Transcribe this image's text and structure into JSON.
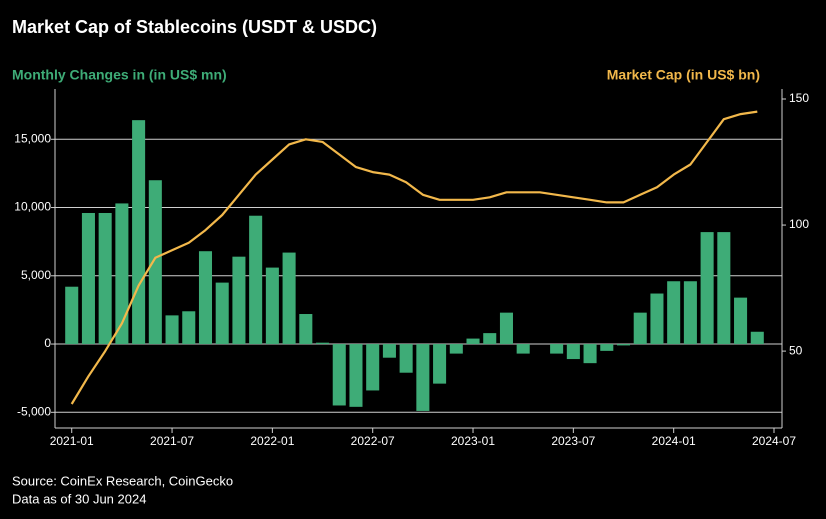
{
  "chart_data": {
    "type": "bar",
    "title": "Market Cap of Stablecoins (USDT & USDC)",
    "source": "Source: CoinEx Research, CoinGecko",
    "note": "Data as of 30 Jun 2024",
    "x": [
      "2021-01",
      "2021-02",
      "2021-03",
      "2021-04",
      "2021-05",
      "2021-06",
      "2021-07",
      "2021-08",
      "2021-09",
      "2021-10",
      "2021-11",
      "2021-12",
      "2022-01",
      "2022-02",
      "2022-03",
      "2022-04",
      "2022-05",
      "2022-06",
      "2022-07",
      "2022-08",
      "2022-09",
      "2022-10",
      "2022-11",
      "2022-12",
      "2023-01",
      "2023-02",
      "2023-03",
      "2023-04",
      "2023-05",
      "2023-06",
      "2023-07",
      "2023-08",
      "2023-09",
      "2023-10",
      "2023-11",
      "2023-12",
      "2024-01",
      "2024-02",
      "2024-03",
      "2024-04",
      "2024-05",
      "2024-06"
    ],
    "xlim": [
      "2020-12",
      "2024-07"
    ],
    "xticks": [
      "2021-01",
      "2021-07",
      "2022-01",
      "2022-07",
      "2023-01",
      "2023-07",
      "2024-01",
      "2024-07"
    ],
    "series": [
      {
        "name": "Monthly Changes in (in US$ mn)",
        "type": "bar",
        "color": "#3eac77",
        "values": [
          4200,
          9600,
          9600,
          10300,
          16400,
          12000,
          2100,
          2400,
          6800,
          4500,
          6400,
          9400,
          5600,
          6700,
          2200,
          100,
          -4500,
          -4600,
          -3400,
          -1000,
          -2100,
          -4900,
          -2900,
          -700,
          400,
          800,
          2300,
          -700,
          0,
          -700,
          -1100,
          -1400,
          -500,
          -100,
          2300,
          3700,
          4600,
          4600,
          8200,
          8200,
          3400,
          900
        ]
      },
      {
        "name": "Market Cap (in US$ bn)",
        "type": "line",
        "color": "#f2b84b",
        "axis": "y2",
        "values": [
          29,
          40,
          50,
          61,
          76,
          87,
          90,
          93,
          98,
          104,
          112,
          120,
          126,
          132,
          134,
          133,
          128,
          123,
          121,
          120,
          117,
          112,
          110,
          110,
          110,
          111,
          113,
          113,
          113,
          112,
          111,
          110,
          109,
          109,
          112,
          115,
          120,
          124,
          133,
          142,
          144,
          145
        ]
      }
    ],
    "ylim": [
      -6150,
      17950
    ],
    "yticks": [
      {
        "value": -5000,
        "label": "-5,000"
      },
      0,
      {
        "value": 5000,
        "label": "5,000"
      },
      {
        "value": 10000,
        "label": "10,000"
      },
      {
        "value": 15000,
        "label": "15,000"
      }
    ],
    "y2lim": [
      19.5,
      150
    ],
    "y2ticks": [
      50,
      100,
      150
    ],
    "grid": true
  }
}
